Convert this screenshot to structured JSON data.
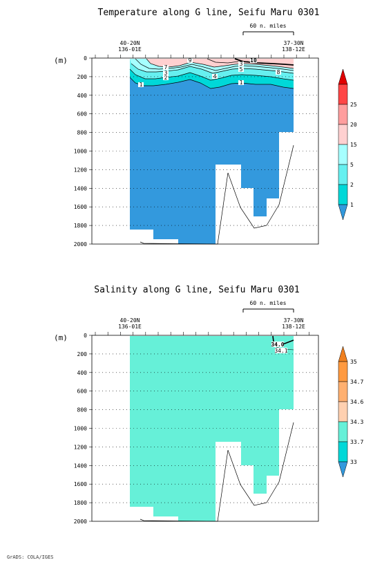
{
  "footer": {
    "credit": "GrADS: COLA/IGES"
  },
  "chart_data": [
    {
      "type": "heatmap",
      "title": "Temperature along G line, Seifu Maru 0301",
      "ylabel": "(m)",
      "ylim": [
        2000,
        0
      ],
      "y_ticks": [
        "0",
        "200",
        "400",
        "600",
        "800",
        "1000",
        "1200",
        "1400",
        "1600",
        "1800",
        "2000"
      ],
      "start_label": [
        "40-20N",
        "136-01E"
      ],
      "end_label": [
        "37-30N",
        "138-12E"
      ],
      "scale_label": "60 n. miles",
      "contour_labels": [
        "9",
        "10",
        "7",
        "3",
        "2",
        "4",
        "5",
        "3",
        "8",
        "1",
        "1"
      ],
      "colorbar": {
        "levels": [
          "1",
          "2",
          "5",
          "15",
          "20",
          "25"
        ],
        "colors": [
          "#3399dd",
          "#00d8d8",
          "#66f0f0",
          "#a6ffff",
          "#ffd0d0",
          "#ff9e9e",
          "#ff4646",
          "#e00000"
        ]
      },
      "fill_colors": {
        "deep": "#3399dd",
        "band1": "#00d8d8",
        "band2": "#66f0f0",
        "band3": "#a6ffff",
        "surface": "#ffd0d0"
      }
    },
    {
      "type": "heatmap",
      "title": "Salinity along G line, Seifu Maru 0301",
      "ylabel": "(m)",
      "ylim": [
        2000,
        0
      ],
      "y_ticks": [
        "0",
        "200",
        "400",
        "600",
        "800",
        "1000",
        "1200",
        "1400",
        "1600",
        "1800",
        "2000"
      ],
      "start_label": [
        "40-20N",
        "136-01E"
      ],
      "end_label": [
        "37-30N",
        "138-12E"
      ],
      "scale_label": "60 n. miles",
      "contour_labels": [
        "34.0",
        "34.1"
      ],
      "colorbar": {
        "levels": [
          "33",
          "33.7",
          "34.3",
          "34.6",
          "34.7",
          "35"
        ],
        "colors": [
          "#3399dd",
          "#00d8d8",
          "#66f0d8",
          "#ffd0b0",
          "#ffb070",
          "#ff9a40",
          "#f08020"
        ]
      },
      "fill_colors": {
        "main": "#66f0d8"
      }
    }
  ]
}
